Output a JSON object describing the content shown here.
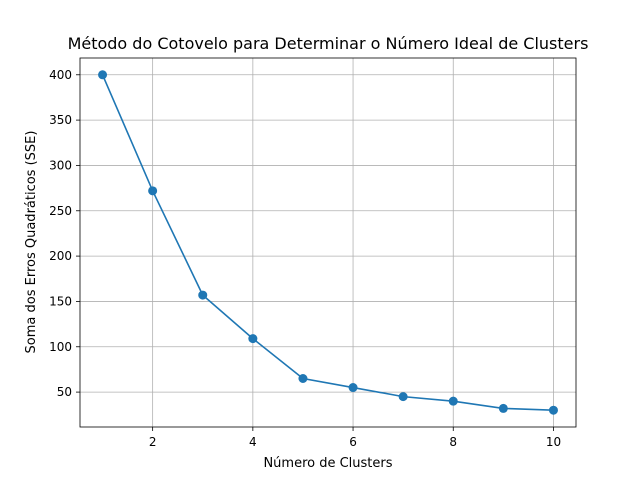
{
  "chart_data": {
    "type": "line",
    "title": "Método do Cotovelo para Determinar o Número Ideal de Clusters",
    "xlabel": "Número de Clusters",
    "ylabel": "Soma dos Erros Quadráticos (SSE)",
    "x": [
      1,
      2,
      3,
      4,
      5,
      6,
      7,
      8,
      9,
      10
    ],
    "series": [
      {
        "values": [
          400,
          272,
          157,
          109,
          65,
          55,
          45,
          40,
          32,
          30
        ]
      }
    ],
    "xlim": [
      0.55,
      10.45
    ],
    "ylim": [
      11.5,
      418.5
    ],
    "xticks": [
      2,
      4,
      6,
      8,
      10
    ],
    "yticks": [
      50,
      100,
      150,
      200,
      250,
      300,
      350,
      400
    ],
    "grid": true,
    "marker": "circle",
    "color": "#1f77b4"
  }
}
